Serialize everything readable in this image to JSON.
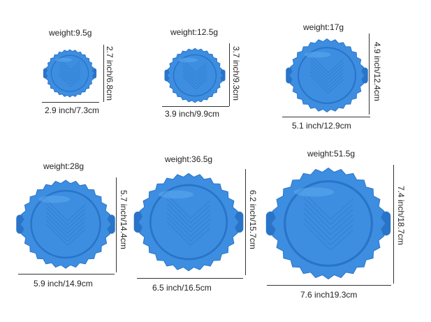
{
  "colors": {
    "mold_fill": "#3d8ee0",
    "mold_dark": "#2a74c8",
    "mold_light": "#5aa6ee"
  },
  "molds": [
    {
      "weight": "weight:9.5g",
      "width_label": "2.9 inch/7.3cm",
      "height_label": "2.7 inch/6.8cm"
    },
    {
      "weight": "weight:12.5g",
      "width_label": "3.9 inch/9.9cm",
      "height_label": "3.7 inch/9.3cm"
    },
    {
      "weight": "weight:17g",
      "width_label": "5.1 inch/12.9cm",
      "height_label": "4.9 inch/12.4cm"
    },
    {
      "weight": "weight:28g",
      "width_label": "5.9 inch/14.9cm",
      "height_label": "5.7 inch/14.4cm"
    },
    {
      "weight": "weight:36.5g",
      "width_label": "6.5 inch/16.5cm",
      "height_label": "6.2 inch/15.7cm"
    },
    {
      "weight": "weight:51.5g",
      "width_label": "7.6 inch19.3cm",
      "height_label": "7.4 inch/18.7cm"
    }
  ]
}
